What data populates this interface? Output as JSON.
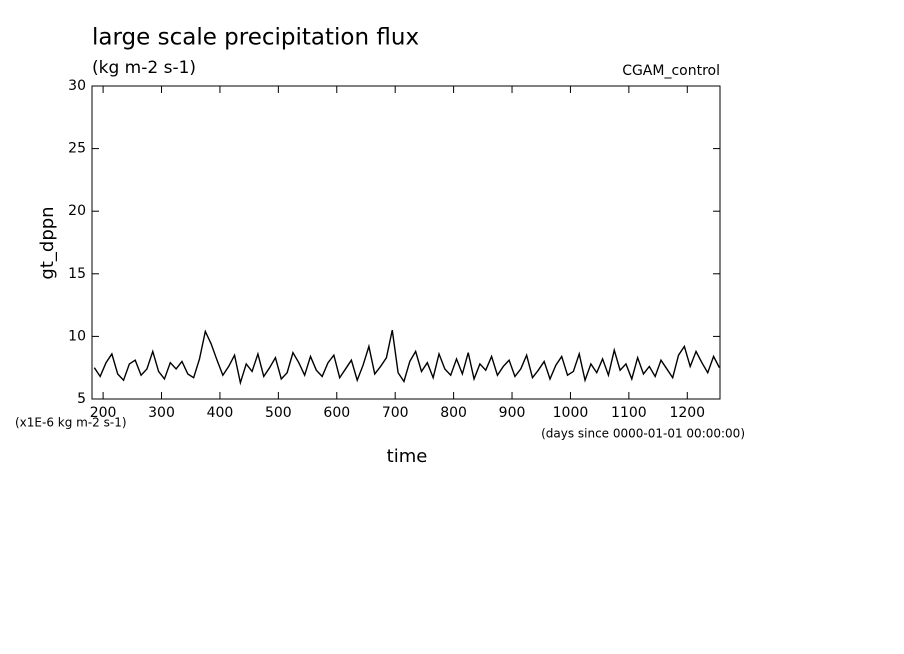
{
  "chart_data": {
    "type": "line",
    "title": "large scale precipitation flux",
    "subtitle": "(kg m-2 s-1)",
    "annotation": "CGAM_control",
    "y_label": "gt_dppn",
    "y_units": "(x1E-6 kg m-2 s-1)",
    "x_units": "(days since 0000-01-01 00:00:00)",
    "x_label": "time",
    "xlim": [
      181,
      1256
    ],
    "ylim": [
      5,
      30
    ],
    "xticks": [
      200,
      300,
      400,
      500,
      600,
      700,
      800,
      900,
      1000,
      1100,
      1200
    ],
    "yticks": [
      5,
      10,
      15,
      20,
      25,
      30
    ],
    "grid": false,
    "x": [
      185,
      195,
      205,
      215,
      225,
      235,
      245,
      255,
      265,
      275,
      285,
      295,
      305,
      315,
      325,
      335,
      345,
      355,
      365,
      375,
      385,
      395,
      405,
      415,
      425,
      435,
      445,
      455,
      465,
      475,
      485,
      495,
      505,
      515,
      525,
      535,
      545,
      555,
      565,
      575,
      585,
      595,
      605,
      615,
      625,
      635,
      645,
      655,
      665,
      675,
      685,
      695,
      705,
      715,
      725,
      735,
      745,
      755,
      765,
      775,
      785,
      795,
      805,
      815,
      825,
      835,
      845,
      855,
      865,
      875,
      885,
      895,
      905,
      915,
      925,
      935,
      945,
      955,
      965,
      975,
      985,
      995,
      1005,
      1015,
      1025,
      1035,
      1045,
      1055,
      1065,
      1075,
      1085,
      1095,
      1105,
      1115,
      1125,
      1135,
      1145,
      1155,
      1165,
      1175,
      1185,
      1195,
      1205,
      1215,
      1225,
      1235,
      1245,
      1255
    ],
    "series": [
      {
        "color": "#000000",
        "values": [
          7.5,
          6.8,
          7.9,
          8.6,
          7.0,
          6.5,
          7.8,
          8.1,
          6.9,
          7.4,
          8.8,
          7.2,
          6.6,
          7.9,
          7.4,
          8.0,
          7.0,
          6.7,
          8.2,
          10.4,
          9.4,
          8.1,
          6.9,
          7.6,
          8.5,
          6.3,
          7.8,
          7.2,
          8.6,
          6.8,
          7.5,
          8.3,
          6.6,
          7.1,
          8.7,
          7.9,
          6.9,
          8.4,
          7.3,
          6.8,
          7.9,
          8.5,
          6.7,
          7.4,
          8.1,
          6.5,
          7.7,
          9.2,
          7.0,
          7.6,
          8.3,
          10.5,
          7.1,
          6.4,
          8.0,
          8.8,
          7.2,
          7.9,
          6.7,
          8.6,
          7.4,
          6.9,
          8.2,
          7.0,
          8.7,
          6.6,
          7.8,
          7.3,
          8.4,
          6.9,
          7.6,
          8.1,
          6.8,
          7.4,
          8.5,
          6.7,
          7.3,
          8.0,
          6.6,
          7.7,
          8.4,
          6.9,
          7.2,
          8.6,
          6.5,
          7.8,
          7.1,
          8.2,
          6.9,
          8.9,
          7.3,
          7.8,
          6.6,
          8.3,
          7.0,
          7.6,
          6.8,
          8.1,
          7.4,
          6.7,
          8.5,
          9.2,
          7.6,
          8.8,
          7.9,
          7.1,
          8.4,
          7.5
        ]
      }
    ]
  }
}
